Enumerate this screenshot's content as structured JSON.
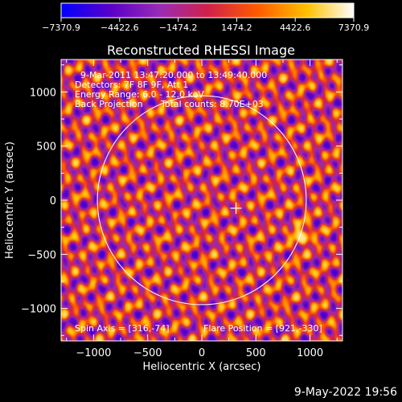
{
  "chart_data": {
    "type": "heatmap",
    "title": "Reconstructed RHESSI Image",
    "xlabel": "Heliocentric X (arcsec)",
    "ylabel": "Heliocentric Y (arcsec)",
    "xlim": [
      -1300,
      1300
    ],
    "ylim": [
      -1300,
      1300
    ],
    "xticks": [
      -1000,
      -500,
      0,
      500,
      1000
    ],
    "xtick_labels": [
      "−1000",
      "−500",
      "0",
      "500",
      "1000"
    ],
    "yticks": [
      -1000,
      -500,
      0,
      500,
      1000
    ],
    "ytick_labels": [
      "−1000",
      "−500",
      "0",
      "500",
      "1000"
    ],
    "colorbar": {
      "min": -7370.9,
      "max": 7370.9,
      "tick_values": [
        -7370.9,
        -4422.6,
        -1474.2,
        1474.2,
        4422.6,
        7370.9
      ],
      "tick_labels": [
        "−7370.9",
        "−4422.6",
        "−1474.2",
        "1474.2",
        "4422.6",
        "7370.9"
      ],
      "colors": [
        "#0000ff",
        "#5a00c8",
        "#9a2cb4",
        "#d0204a",
        "#ff5a00",
        "#ffc000",
        "#ffffff"
      ]
    },
    "annotations": {
      "time": "9-Mar-2011 13:47:20.000 to 13:49:40.000",
      "detectors": "Detectors: 7F 8F 9F, Att 1",
      "energy": "Energy Range: 6.0 - 12.0 keV",
      "method": "Back Projection",
      "counts": "Total counts: 8.70E+03",
      "spin_axis": "Spin Axis = [316,-74]",
      "flare_position": "Flare Position = [921,-330]"
    },
    "solar_limb_radius": 965,
    "flare_position": [
      921,
      -330
    ],
    "spin_axis": [
      316,
      -74
    ],
    "grid": false
  },
  "footer": {
    "date": "9-May-2022 19:56"
  }
}
